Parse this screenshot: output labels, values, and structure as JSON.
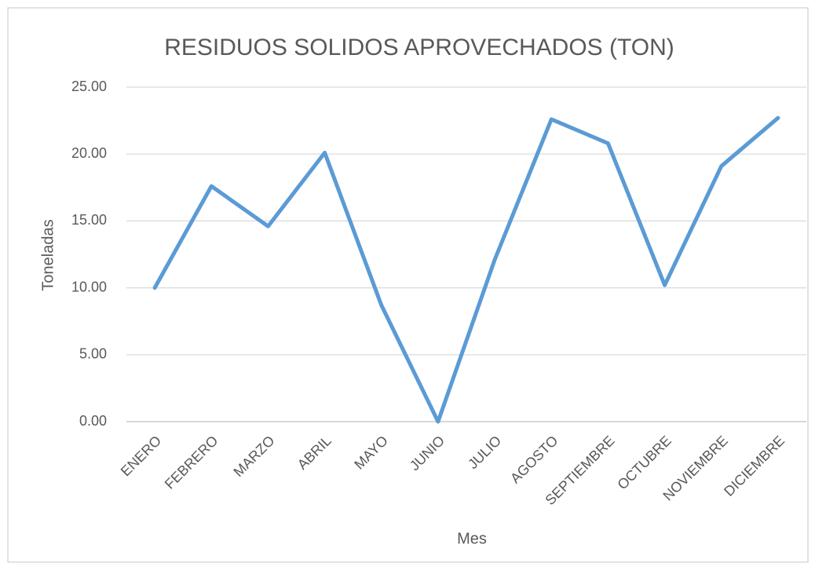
{
  "chart_data": {
    "type": "line",
    "title": "RESIDUOS SOLIDOS APROVECHADOS (TON)",
    "x_label": "Mes",
    "y_label": "Toneladas",
    "categories": [
      "ENERO",
      "FEBRERO",
      "MARZO",
      "ABRIL",
      "MAYO",
      "JUNIO",
      "JULIO",
      "AGOSTO",
      "SEPTIEMBRE",
      "OCTUBRE",
      "NOVIEMBRE",
      "DICIEMBRE"
    ],
    "series": [
      {
        "name": "Toneladas",
        "color": "#5b9bd5",
        "values": [
          10.0,
          17.6,
          14.6,
          20.1,
          8.7,
          0.0,
          12.1,
          22.6,
          20.8,
          10.2,
          19.1,
          22.7
        ]
      }
    ],
    "ylim": [
      0,
      25
    ],
    "yticks": [
      {
        "value": 0,
        "label": "0.00"
      },
      {
        "value": 5,
        "label": "5.00"
      },
      {
        "value": 10,
        "label": "10.00"
      },
      {
        "value": 15,
        "label": "15.00"
      },
      {
        "value": 20,
        "label": "20.00"
      },
      {
        "value": 25,
        "label": "25.00"
      }
    ],
    "grid": true
  }
}
